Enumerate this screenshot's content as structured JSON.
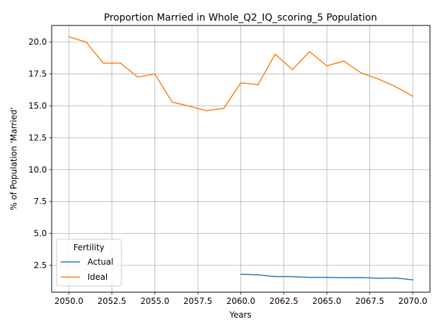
{
  "chart_data": {
    "type": "line",
    "title": "Proportion Married in Whole_Q2_IQ_scoring_5 Population",
    "xlabel": "Years",
    "ylabel": "% of Population 'Married'",
    "xlim": [
      2049,
      2071
    ],
    "ylim": [
      0.4,
      21.3
    ],
    "grid": true,
    "x_ticks": [
      "2050.0",
      "2052.5",
      "2055.0",
      "2057.5",
      "2060.0",
      "2062.5",
      "2065.0",
      "2067.5",
      "2070.0"
    ],
    "x_tick_values": [
      2050,
      2052.5,
      2055,
      2057.5,
      2060,
      2062.5,
      2065,
      2067.5,
      2070
    ],
    "y_ticks": [
      "2.5",
      "5.0",
      "7.5",
      "10.0",
      "12.5",
      "15.0",
      "17.5",
      "20.0"
    ],
    "y_tick_values": [
      2.5,
      5,
      7.5,
      10,
      12.5,
      15,
      17.5,
      20
    ],
    "legend": {
      "title": "Fertility",
      "placement": "lower-left"
    },
    "series": [
      {
        "name": "Actual",
        "color": "#1f77b4",
        "x": [
          2060,
          2061,
          2062,
          2063,
          2064,
          2065,
          2066,
          2067,
          2068,
          2069,
          2070
        ],
        "values": [
          1.8,
          1.76,
          1.62,
          1.62,
          1.56,
          1.56,
          1.54,
          1.55,
          1.49,
          1.51,
          1.37
        ]
      },
      {
        "name": "Ideal",
        "color": "#ff7f0e",
        "x": [
          2050,
          2051,
          2052,
          2053,
          2054,
          2055,
          2056,
          2057,
          2058,
          2059,
          2060,
          2061,
          2062,
          2063,
          2064,
          2065,
          2066,
          2067,
          2068,
          2069,
          2070
        ],
        "values": [
          20.4,
          20.0,
          18.35,
          18.35,
          17.25,
          17.5,
          15.3,
          14.97,
          14.62,
          14.8,
          16.8,
          16.66,
          19.05,
          17.84,
          19.25,
          18.14,
          18.5,
          17.58,
          17.1,
          16.5,
          15.75
        ]
      }
    ]
  }
}
